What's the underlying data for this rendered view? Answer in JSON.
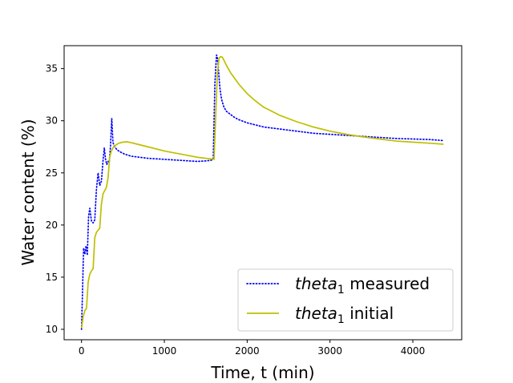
{
  "chart_data": {
    "type": "line",
    "xlabel": "Time, t (min)",
    "ylabel": "Water content (%)",
    "xlim": [
      -210,
      4590
    ],
    "ylim": [
      9.0,
      37.2
    ],
    "xticks": [
      0,
      1000,
      2000,
      3000,
      4000
    ],
    "yticks": [
      10,
      15,
      20,
      25,
      30,
      35
    ],
    "grid": false,
    "legend_position": "lower-right",
    "series": [
      {
        "name": "theta_1 measured",
        "legend_main": "theta",
        "legend_sub": "1",
        "legend_suffix": " measured",
        "color": "#0000ff",
        "style": "dotted",
        "x": [
          0,
          15,
          25,
          40,
          55,
          70,
          85,
          100,
          120,
          140,
          160,
          180,
          200,
          220,
          240,
          260,
          275,
          290,
          305,
          320,
          335,
          350,
          365,
          380,
          400,
          430,
          470,
          520,
          600,
          700,
          800,
          900,
          1000,
          1100,
          1200,
          1300,
          1400,
          1500,
          1560,
          1590,
          1600,
          1610,
          1620,
          1630,
          1640,
          1650,
          1660,
          1670,
          1680,
          1690,
          1700,
          1720,
          1750,
          1800,
          1850,
          1900,
          2000,
          2100,
          2200,
          2300,
          2400,
          2500,
          2600,
          2700,
          2800,
          2900,
          3000,
          3200,
          3400,
          3600,
          3800,
          4000,
          4200,
          4370
        ],
        "y": [
          10.0,
          14.5,
          17.8,
          17.2,
          18.0,
          17.1,
          20.8,
          21.6,
          20.4,
          20.2,
          20.5,
          23.4,
          25.0,
          23.8,
          24.2,
          26.2,
          27.4,
          26.3,
          25.8,
          26.1,
          26.0,
          27.6,
          30.2,
          27.9,
          27.5,
          27.2,
          27.0,
          26.8,
          26.6,
          26.5,
          26.4,
          26.35,
          26.3,
          26.25,
          26.2,
          26.15,
          26.1,
          26.15,
          26.2,
          26.3,
          30.0,
          33.5,
          35.0,
          36.3,
          36.0,
          35.3,
          34.2,
          33.2,
          32.6,
          32.1,
          31.8,
          31.3,
          30.9,
          30.6,
          30.3,
          30.1,
          29.8,
          29.6,
          29.4,
          29.3,
          29.2,
          29.1,
          29.0,
          28.9,
          28.8,
          28.75,
          28.7,
          28.6,
          28.5,
          28.4,
          28.3,
          28.25,
          28.2,
          28.1
        ]
      },
      {
        "name": "theta_1 initial",
        "legend_main": "theta",
        "legend_sub": "1",
        "legend_suffix": " initial",
        "color": "#bfbf00",
        "style": "solid",
        "x": [
          0,
          20,
          40,
          60,
          80,
          100,
          120,
          140,
          160,
          180,
          200,
          220,
          240,
          260,
          280,
          300,
          320,
          340,
          360,
          380,
          400,
          450,
          500,
          550,
          600,
          700,
          800,
          900,
          1000,
          1100,
          1200,
          1300,
          1400,
          1500,
          1600,
          1620,
          1640,
          1660,
          1680,
          1700,
          1720,
          1750,
          1800,
          1900,
          2000,
          2100,
          2200,
          2400,
          2600,
          2800,
          3000,
          3200,
          3400,
          3600,
          3800,
          4000,
          4200,
          4370
        ],
        "y": [
          10.1,
          11.2,
          11.8,
          12.0,
          14.5,
          15.3,
          15.6,
          15.8,
          18.8,
          19.3,
          19.5,
          19.7,
          22.0,
          23.0,
          23.3,
          23.6,
          24.5,
          26.5,
          27.1,
          27.4,
          27.6,
          27.85,
          27.95,
          27.98,
          27.9,
          27.7,
          27.5,
          27.3,
          27.1,
          26.95,
          26.8,
          26.65,
          26.5,
          26.4,
          26.3,
          30.5,
          34.5,
          36.0,
          36.15,
          36.1,
          35.8,
          35.3,
          34.6,
          33.5,
          32.6,
          31.9,
          31.3,
          30.5,
          29.9,
          29.4,
          29.0,
          28.7,
          28.45,
          28.25,
          28.05,
          27.95,
          27.85,
          27.75
        ]
      }
    ]
  }
}
